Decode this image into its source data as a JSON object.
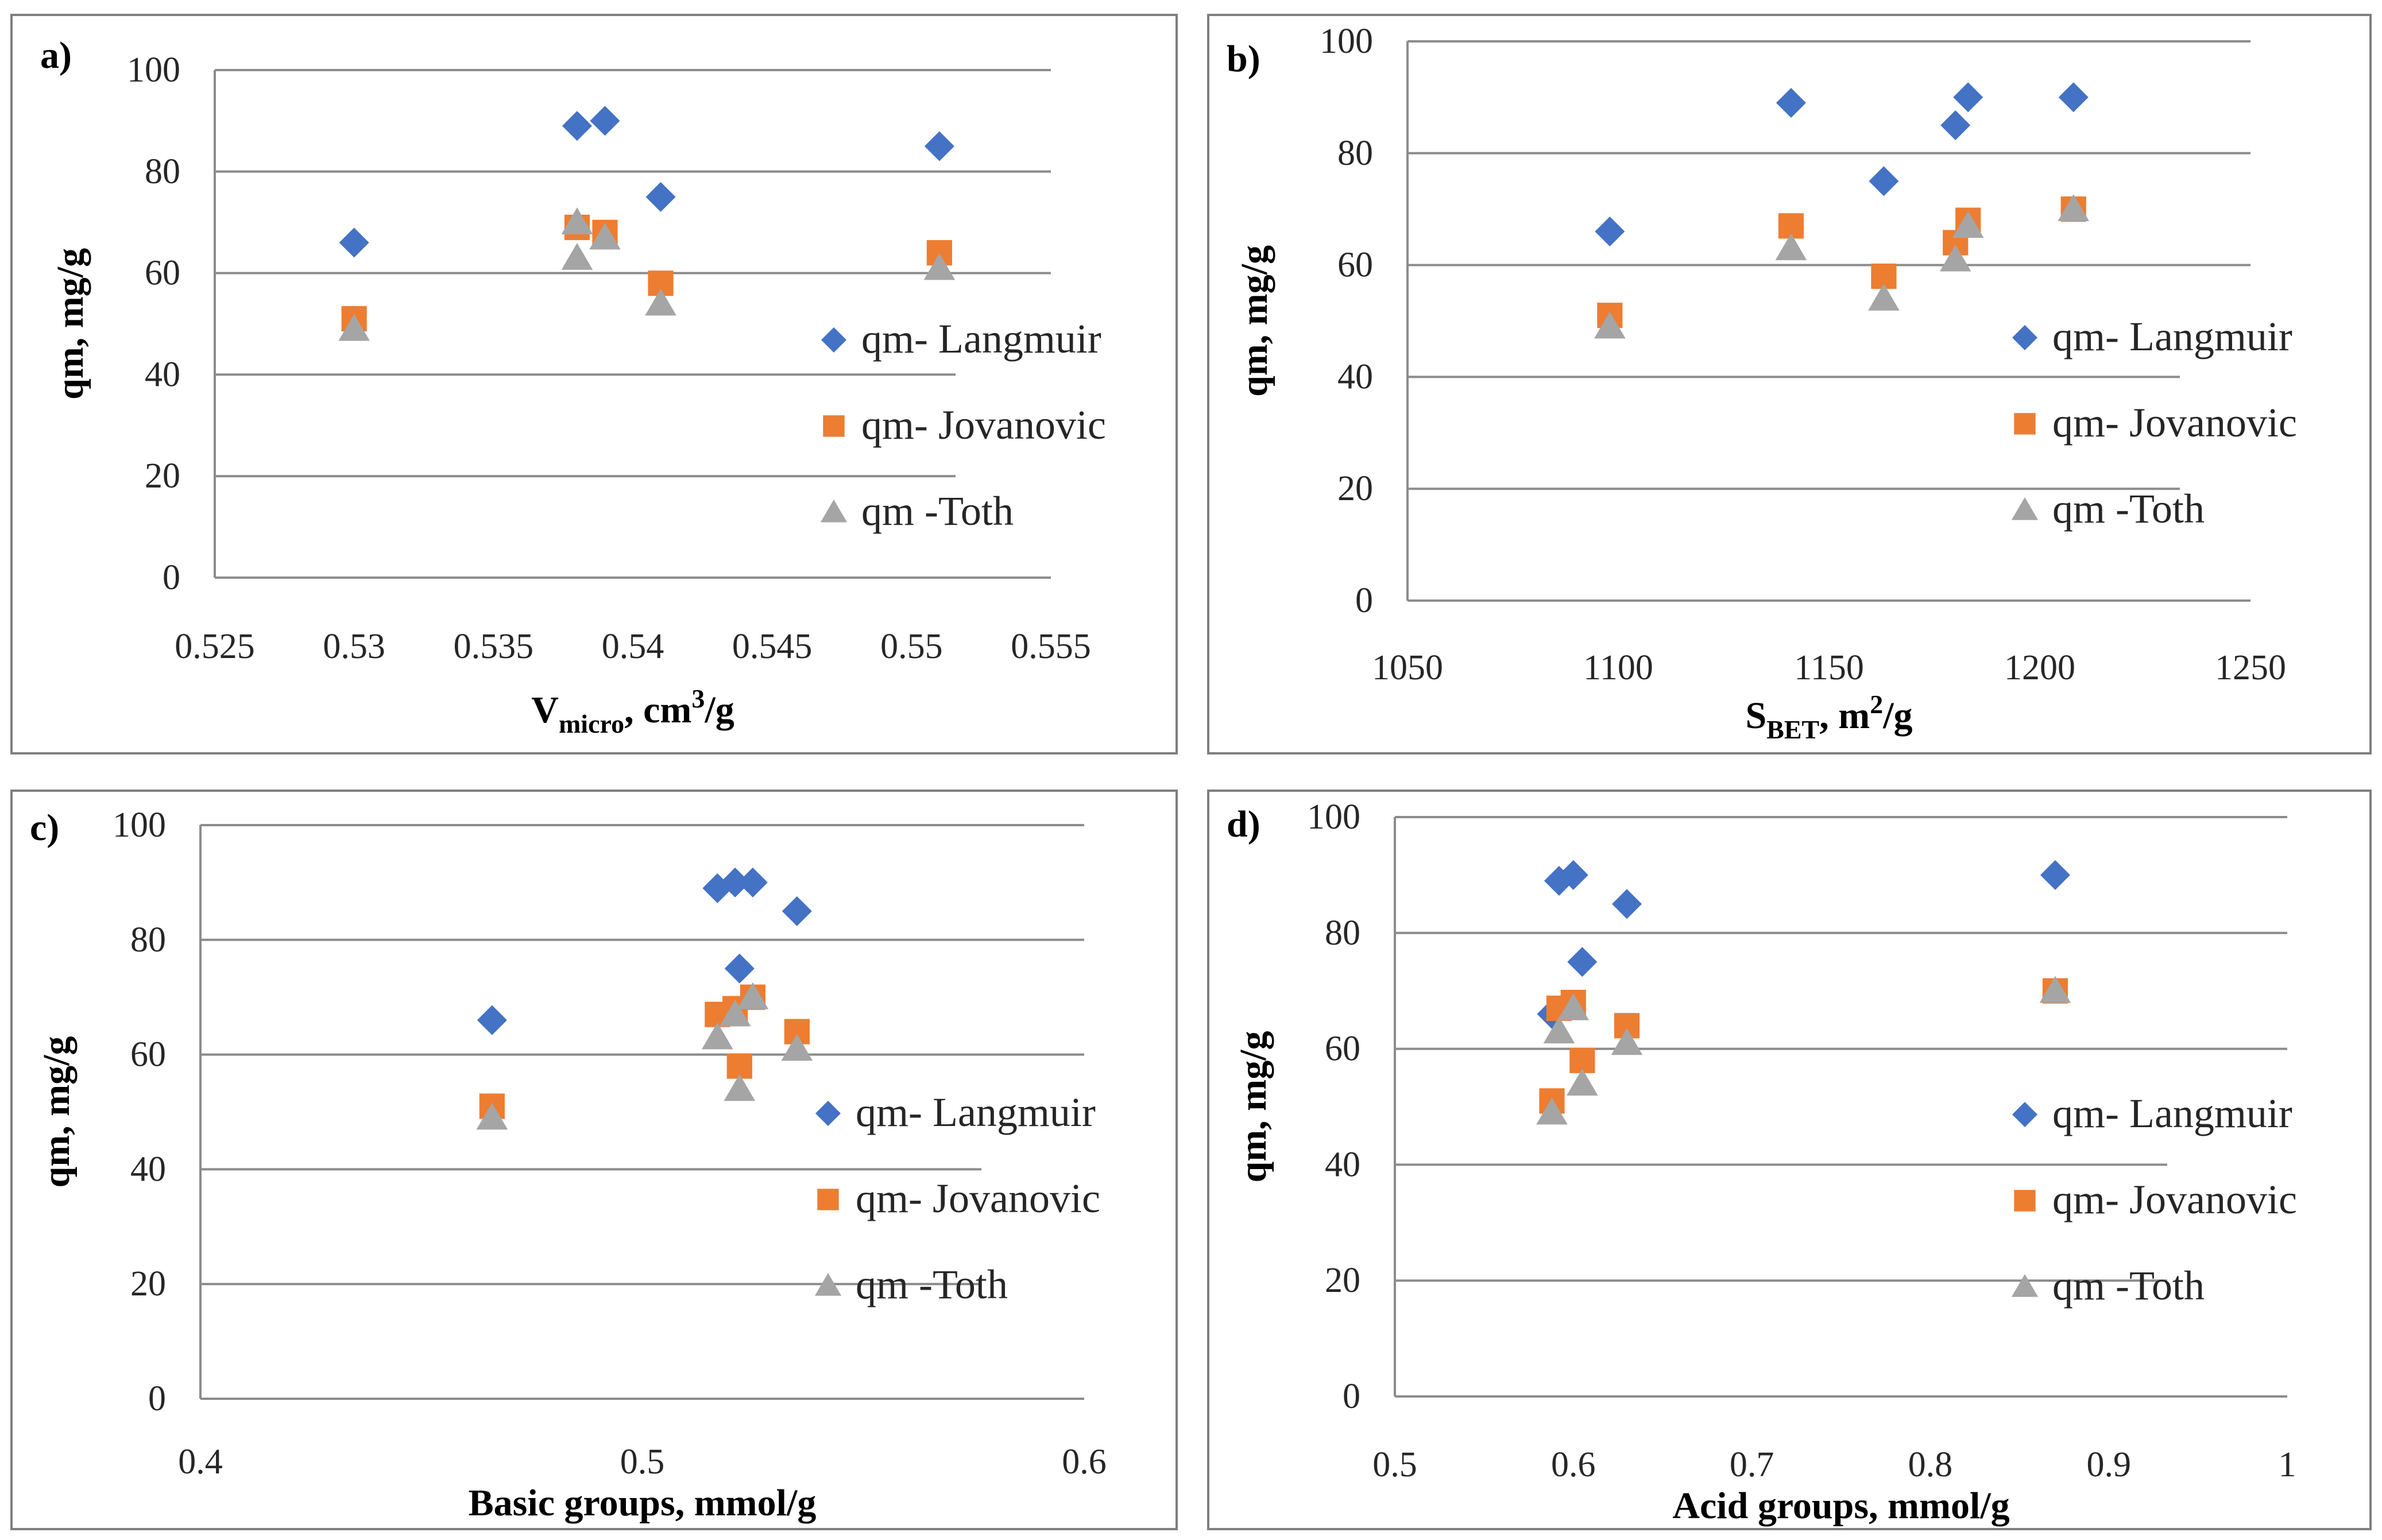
{
  "colors": {
    "langmuir": "#4472C4",
    "jovanovic": "#ED7D31",
    "toth": "#A5A5A5"
  },
  "chart_data": [
    {
      "type": "scatter",
      "panel_label": "a)",
      "xlabel": "V",
      "xlabel_sub": "micro",
      "xlabel_rest": ", cm",
      "xlabel_sup": "3",
      "xlabel_end": "/g",
      "ylabel": "qm, mg/g",
      "xlim": [
        0.525,
        0.555
      ],
      "ylim": [
        0,
        100
      ],
      "xticks": [
        "0.525",
        "0.53",
        "0.535",
        "0.54",
        "0.545",
        "0.55",
        "0.555"
      ],
      "yticks": [
        "0",
        "20",
        "40",
        "60",
        "80",
        "100"
      ],
      "series": [
        {
          "name": "qm- Langmuir",
          "marker": "diamond",
          "x": [
            0.53,
            0.538,
            0.539,
            0.541,
            0.551
          ],
          "y": [
            66,
            89,
            90,
            75,
            85
          ]
        },
        {
          "name": "qm- Jovanovic",
          "marker": "square",
          "x": [
            0.53,
            0.538,
            0.539,
            0.541,
            0.551
          ],
          "y": [
            51,
            69,
            68,
            58,
            64
          ]
        },
        {
          "name": "qm -Toth",
          "marker": "triangle",
          "x": [
            0.53,
            0.538,
            0.538,
            0.539,
            0.541,
            0.551
          ],
          "y": [
            49,
            63,
            70,
            67,
            54,
            61
          ]
        }
      ]
    },
    {
      "type": "scatter",
      "panel_label": "b)",
      "xlabel": "S",
      "xlabel_sub": "BET",
      "xlabel_rest": ", m",
      "xlabel_sup": "2",
      "xlabel_end": "/g",
      "ylabel": "qm, mg/g",
      "xlim": [
        1050,
        1250
      ],
      "ylim": [
        0,
        100
      ],
      "xticks": [
        "1050",
        "1100",
        "1150",
        "1200",
        "1250"
      ],
      "yticks": [
        "0",
        "20",
        "40",
        "60",
        "80",
        "100"
      ],
      "series": [
        {
          "name": "qm- Langmuir",
          "marker": "diamond",
          "x": [
            1098,
            1141,
            1163,
            1180,
            1183,
            1208
          ],
          "y": [
            66,
            89,
            75,
            85,
            90,
            90
          ]
        },
        {
          "name": "qm- Jovanovic",
          "marker": "square",
          "x": [
            1098,
            1141,
            1163,
            1180,
            1183,
            1208
          ],
          "y": [
            51,
            67,
            58,
            64,
            68,
            70
          ]
        },
        {
          "name": "qm -Toth",
          "marker": "triangle",
          "x": [
            1098,
            1141,
            1163,
            1180,
            1183,
            1208
          ],
          "y": [
            49,
            63,
            54,
            61,
            67,
            70
          ]
        }
      ]
    },
    {
      "type": "scatter",
      "panel_label": "c)",
      "xlabel": "Basic groups, mmol/g",
      "ylabel": "qm, mg/g",
      "xlim": [
        0.4,
        0.6
      ],
      "ylim": [
        0,
        100
      ],
      "xticks": [
        "0.4",
        "0.5",
        "0.6"
      ],
      "yticks": [
        "0",
        "20",
        "40",
        "60",
        "80",
        "100"
      ],
      "series": [
        {
          "name": "qm- Langmuir",
          "marker": "diamond",
          "x": [
            0.466,
            0.517,
            0.521,
            0.522,
            0.525,
            0.535
          ],
          "y": [
            66,
            89,
            90,
            75,
            90,
            85
          ]
        },
        {
          "name": "qm- Jovanovic",
          "marker": "square",
          "x": [
            0.466,
            0.517,
            0.521,
            0.522,
            0.525,
            0.535
          ],
          "y": [
            51,
            67,
            68,
            58,
            70,
            64
          ]
        },
        {
          "name": "qm -Toth",
          "marker": "triangle",
          "x": [
            0.466,
            0.517,
            0.521,
            0.522,
            0.525,
            0.535
          ],
          "y": [
            49,
            63,
            67,
            54,
            70,
            61
          ]
        }
      ]
    },
    {
      "type": "scatter",
      "panel_label": "d)",
      "xlabel": "Acid groups, mmol/g",
      "ylabel": "qm, mg/g",
      "xlim": [
        0.5,
        1.0
      ],
      "ylim": [
        0,
        100
      ],
      "xticks": [
        "0.5",
        "0.6",
        "0.7",
        "0.8",
        "0.9",
        "1"
      ],
      "yticks": [
        "0",
        "20",
        "40",
        "60",
        "80",
        "100"
      ],
      "series": [
        {
          "name": "qm- Langmuir",
          "marker": "diamond",
          "x": [
            0.588,
            0.592,
            0.6,
            0.605,
            0.63,
            0.87
          ],
          "y": [
            66,
            89,
            90,
            75,
            85,
            90
          ]
        },
        {
          "name": "qm- Jovanovic",
          "marker": "square",
          "x": [
            0.588,
            0.592,
            0.6,
            0.605,
            0.63,
            0.87
          ],
          "y": [
            51,
            67,
            68,
            58,
            64,
            70
          ]
        },
        {
          "name": "qm -Toth",
          "marker": "triangle",
          "x": [
            0.588,
            0.592,
            0.6,
            0.605,
            0.63,
            0.87
          ],
          "y": [
            49,
            63,
            67,
            54,
            61,
            70
          ]
        }
      ]
    }
  ]
}
